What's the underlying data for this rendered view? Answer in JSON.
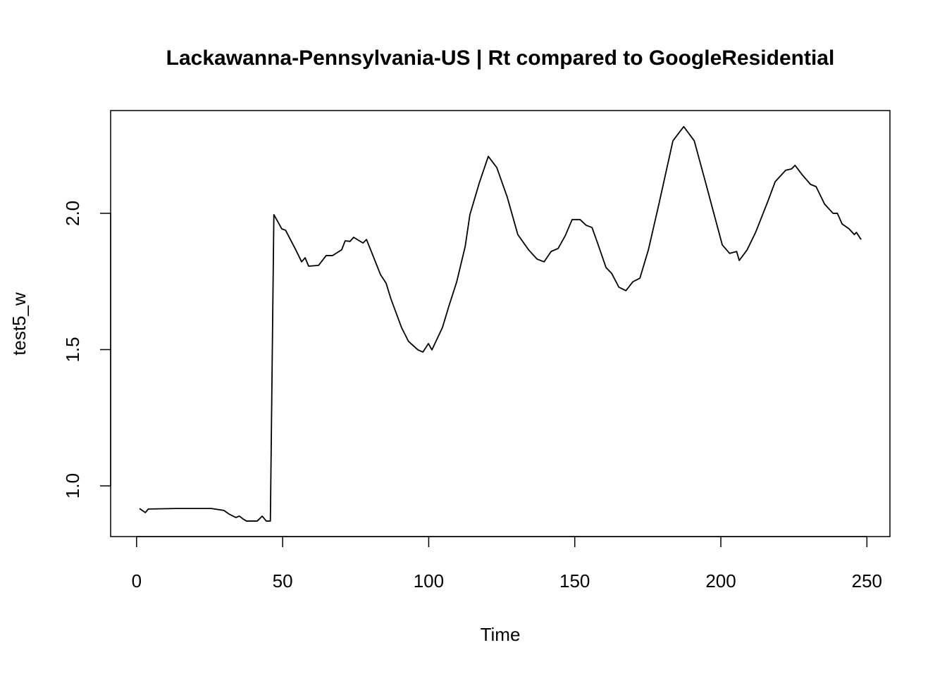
{
  "chart_data": {
    "type": "line",
    "title": "Lackawanna-Pennsylvania-US | Rt compared to GoogleResidential",
    "x_label": "Time",
    "y_label": "test5_w",
    "color": "#000000",
    "x": [
      1,
      3,
      4,
      13.5,
      25.6,
      29.9,
      31.6,
      34,
      35.2,
      36.4,
      37.6,
      41.3,
      43,
      44.4,
      45.8,
      46.3,
      47,
      49.7,
      51,
      54.5,
      56.5,
      57.7,
      58.9,
      62.3,
      64.9,
      67.1,
      70.2,
      71.4,
      73.1,
      74.3,
      77.5,
      78.7,
      81.1,
      83.5,
      85.4,
      87.1,
      90.7,
      93.1,
      96.3,
      98,
      99.9,
      101.1,
      104.7,
      106.9,
      109.6,
      112.5,
      114.1,
      117.3,
      120.4,
      123.3,
      126.9,
      130.5,
      134.2,
      137.1,
      139.5,
      141.9,
      144.3,
      146.7,
      149.1,
      151.8,
      153.9,
      155.9,
      157.8,
      160.7,
      162.6,
      165.1,
      167.5,
      169.9,
      172.3,
      175.2,
      178.8,
      183.6,
      187.3,
      190.9,
      194.5,
      197.4,
      200.5,
      203,
      205.4,
      206.3,
      209,
      211.9,
      216.2,
      218.6,
      222.2,
      224.2,
      225.4,
      227.8,
      230.7,
      232.6,
      235.5,
      238.4,
      239.9,
      241.5,
      243.9,
      245.7,
      246.4,
      248
    ],
    "values": [
      0.917,
      0.902,
      0.915,
      0.917,
      0.917,
      0.91,
      0.897,
      0.884,
      0.889,
      0.879,
      0.871,
      0.871,
      0.889,
      0.871,
      0.871,
      1.34,
      1.995,
      1.943,
      1.938,
      1.866,
      1.822,
      1.837,
      1.806,
      1.809,
      1.845,
      1.845,
      1.866,
      1.899,
      1.897,
      1.912,
      1.891,
      1.904,
      1.84,
      1.775,
      1.744,
      1.685,
      1.581,
      1.53,
      1.499,
      1.491,
      1.522,
      1.499,
      1.581,
      1.659,
      1.749,
      1.879,
      1.995,
      2.111,
      2.209,
      2.168,
      2.059,
      1.922,
      1.866,
      1.832,
      1.822,
      1.86,
      1.871,
      1.917,
      1.977,
      1.977,
      1.956,
      1.948,
      1.891,
      1.801,
      1.78,
      1.729,
      1.716,
      1.749,
      1.762,
      1.866,
      2.034,
      2.266,
      2.318,
      2.266,
      2.124,
      2.008,
      1.884,
      1.853,
      1.86,
      1.827,
      1.866,
      1.93,
      2.047,
      2.116,
      2.158,
      2.163,
      2.176,
      2.142,
      2.106,
      2.098,
      2.034,
      2.0,
      2.0,
      1.961,
      1.943,
      1.922,
      1.93,
      1.904
    ],
    "xlim": [
      -8.88,
      257.88
    ],
    "ylim": [
      0.814,
      2.377
    ],
    "xticks": [
      0,
      50,
      100,
      150,
      200,
      250
    ],
    "yticks": [
      {
        "value": 1,
        "label": "1.0"
      },
      1.5,
      {
        "value": 2,
        "label": "2.0"
      }
    ]
  }
}
